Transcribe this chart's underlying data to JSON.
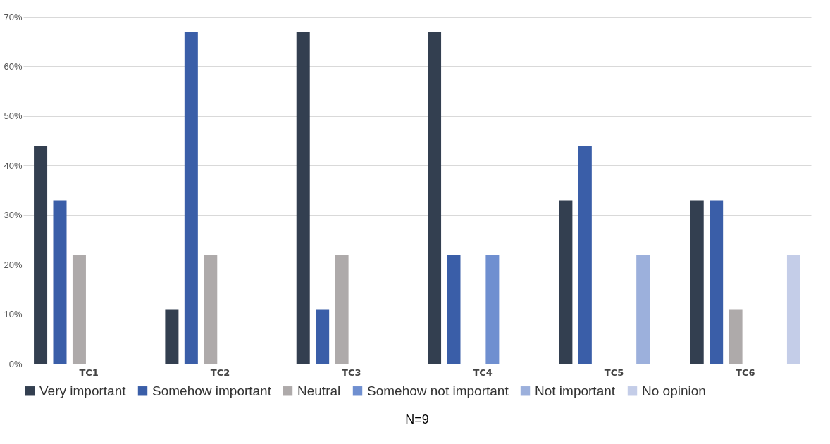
{
  "chart_data": {
    "type": "bar",
    "categories": [
      "TC1",
      "TC2",
      "TC3",
      "TC4",
      "TC5",
      "TC6"
    ],
    "series": [
      {
        "name": "Very important",
        "color": "#333f50",
        "values": [
          44,
          11,
          67,
          67,
          33,
          33
        ]
      },
      {
        "name": "Somehow important",
        "color": "#3a5ea8",
        "values": [
          33,
          67,
          11,
          22,
          44,
          33
        ]
      },
      {
        "name": "Neutral",
        "color": "#aeaaaa",
        "values": [
          22,
          22,
          22,
          null,
          null,
          11
        ]
      },
      {
        "name": "Somehow not important",
        "color": "#6f8fd0",
        "values": [
          null,
          null,
          null,
          22,
          null,
          null
        ]
      },
      {
        "name": "Not important",
        "color": "#9cb0dc",
        "values": [
          null,
          null,
          null,
          null,
          22,
          null
        ]
      },
      {
        "name": "No opinion",
        "color": "#c4cde8",
        "values": [
          null,
          null,
          null,
          null,
          null,
          22
        ]
      }
    ],
    "ylim": [
      0,
      70
    ],
    "yticks": [
      {
        "value": 0,
        "label": "0%"
      },
      {
        "value": 10,
        "label": "10%"
      },
      {
        "value": 20,
        "label": "20%"
      },
      {
        "value": 30,
        "label": "30%"
      },
      {
        "value": 40,
        "label": "40%"
      },
      {
        "value": 50,
        "label": "50%"
      },
      {
        "value": 60,
        "label": "60%"
      },
      {
        "value": 70,
        "label": "70%"
      }
    ],
    "grid": "y",
    "legend": "bottom",
    "annotations": [
      "N=9"
    ]
  }
}
